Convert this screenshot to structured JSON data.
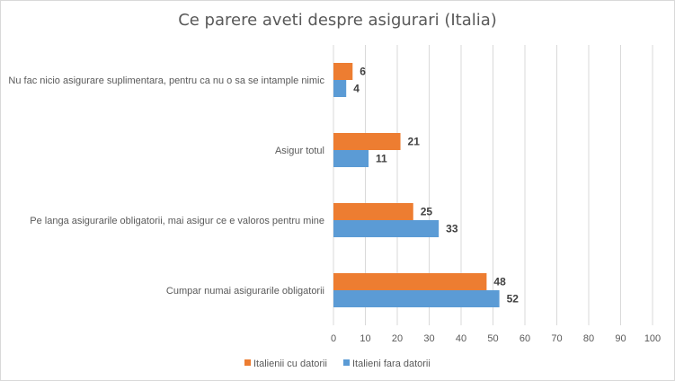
{
  "chart_data": {
    "type": "bar",
    "orientation": "horizontal",
    "title": "Ce parere aveti despre asigurari (Italia)",
    "xlabel": "",
    "ylabel": "",
    "xlim": [
      0,
      100
    ],
    "x_ticks": [
      0,
      10,
      20,
      30,
      40,
      50,
      60,
      70,
      80,
      90,
      100
    ],
    "grid": true,
    "legend_position": "bottom",
    "categories": [
      "Nu fac nicio asigurare suplimentara, pentru ca nu o sa se intample nimic",
      "Asigur totul",
      "Pe langa asigurarile obligatorii, mai asigur ce e valoros pentru mine",
      "Cumpar numai asigurarile obligatorii"
    ],
    "series": [
      {
        "name": "Italienii cu datorii",
        "color": "#ED7D31",
        "values": [
          6,
          21,
          25,
          48
        ]
      },
      {
        "name": "Italieni fara datorii",
        "color": "#5B9BD5",
        "values": [
          4,
          11,
          33,
          52
        ]
      }
    ]
  }
}
